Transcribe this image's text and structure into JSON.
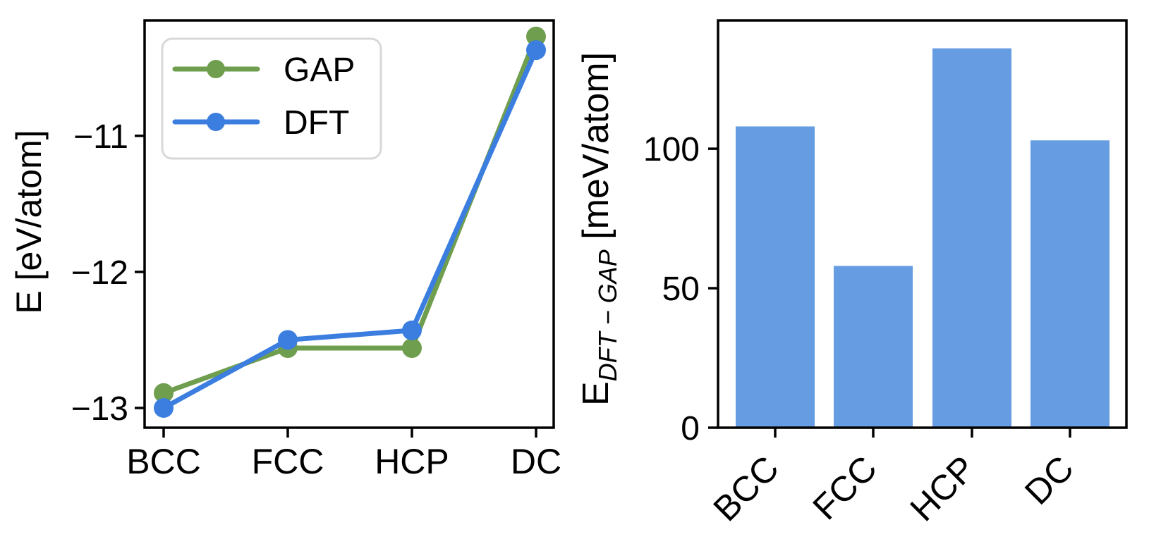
{
  "figure": {
    "background": "#ffffff",
    "axis_color": "#000000"
  },
  "chart_data": [
    {
      "id": "energy-per-structure",
      "type": "line",
      "categories": [
        "BCC",
        "FCC",
        "HCP",
        "DC"
      ],
      "series": [
        {
          "name": "GAP",
          "color": "#6F9E4E",
          "values": [
            -12.89,
            -12.56,
            -12.56,
            -10.27
          ]
        },
        {
          "name": "DFT",
          "color": "#3B7EE0",
          "values": [
            -13.0,
            -12.5,
            -12.43,
            -10.37
          ]
        }
      ],
      "title": "",
      "xlabel": "",
      "ylabel": "E [eV/atom]",
      "yticks": [
        {
          "value": -11,
          "label": "−11"
        },
        {
          "value": -12,
          "label": "−12"
        },
        {
          "value": -13,
          "label": "−13"
        }
      ],
      "ylim": [
        -13.145,
        -10.152
      ],
      "grid": false,
      "legend": {
        "position": "upper-left",
        "entries": [
          "GAP",
          "DFT"
        ]
      },
      "marker": "circle"
    },
    {
      "id": "energy-difference",
      "type": "bar",
      "categories": [
        "BCC",
        "FCC",
        "HCP",
        "DC"
      ],
      "values": [
        108,
        58,
        136,
        103
      ],
      "bar_color": "#659CE2",
      "title": "",
      "xlabel": "",
      "ylabel": {
        "prefix": "E",
        "subscript": "DFT − GAP",
        "suffix": " [meV/atom]"
      },
      "yticks": [
        {
          "value": 0,
          "label": "0"
        },
        {
          "value": 50,
          "label": "50"
        },
        {
          "value": 100,
          "label": "100"
        }
      ],
      "ylim": [
        0,
        146
      ],
      "grid": false,
      "legend": null,
      "xtick_rotation": 45
    }
  ]
}
